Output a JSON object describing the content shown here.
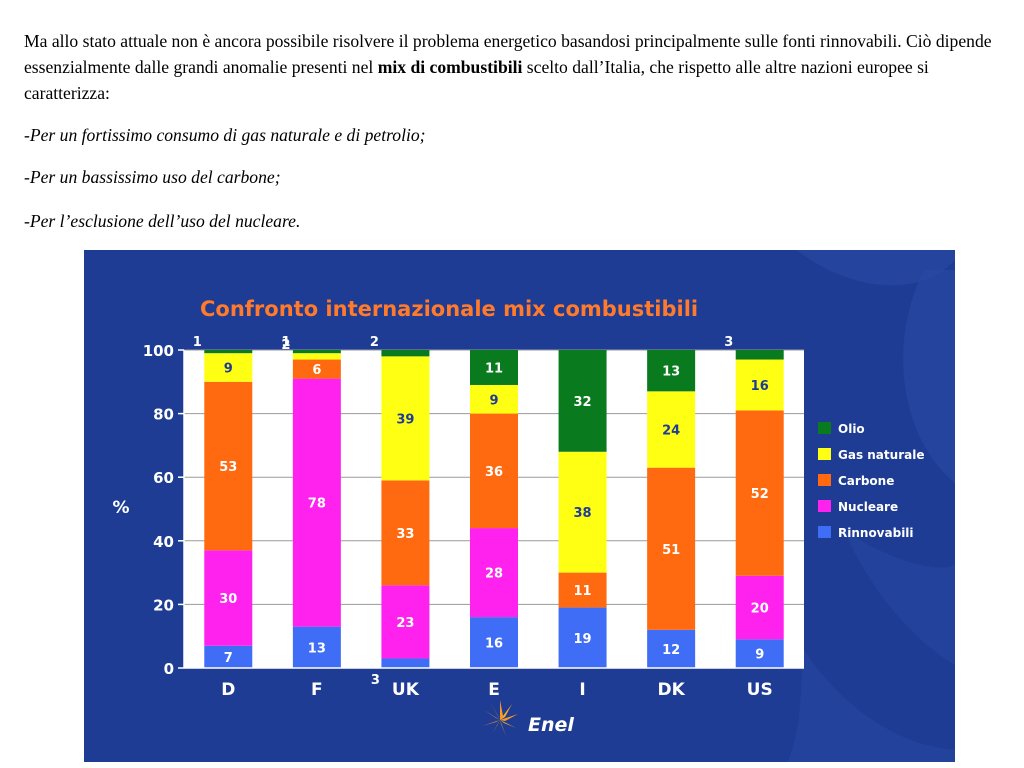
{
  "intro": {
    "text_before": "Ma allo stato attuale non è ancora possibile risolvere il problema energetico basandosi principalmente sulle fonti rinnovabili. Ciò dipende essenzialmente dalle grandi anomalie presenti nel ",
    "bold": "mix di combustibili",
    "text_after": " scelto dall’Italia, che rispetto alle altre nazioni europee si caratterizza:"
  },
  "bullets": [
    {
      "dash": "-",
      "text": "Per un fortissimo consumo di gas naturale e di petrolio;"
    },
    {
      "dash": "-",
      "text": "Per un bassissimo uso del carbone;"
    },
    {
      "dash": "-",
      "text": "Per l’esclusione dell’uso del nucleare."
    }
  ],
  "brand": "Enel",
  "chart_data": {
    "type": "bar",
    "stacked": true,
    "title": "Confronto internazionale mix combustibili",
    "ylabel": "%",
    "ylim": [
      0,
      100
    ],
    "yticks": [
      0,
      20,
      40,
      60,
      80,
      100
    ],
    "grid": true,
    "legend_position": "right",
    "categories": [
      "D",
      "F",
      "UK",
      "E",
      "I",
      "DK",
      "US"
    ],
    "series": [
      {
        "name": "Rinnovabili",
        "color": "#3f6df5",
        "label_color": "#ffffff",
        "values": [
          7,
          13,
          3,
          16,
          19,
          12,
          9
        ]
      },
      {
        "name": "Nucleare",
        "color": "#ff22ee",
        "label_color": "#ffffff",
        "values": [
          30,
          78,
          23,
          28,
          0,
          0,
          20
        ]
      },
      {
        "name": "Carbone",
        "color": "#ff6a10",
        "label_color": "#ffffff",
        "values": [
          53,
          6,
          33,
          36,
          11,
          51,
          52
        ]
      },
      {
        "name": "Gas naturale",
        "color": "#ffff14",
        "label_color": "#1e3c94",
        "values": [
          9,
          2,
          39,
          9,
          38,
          24,
          16
        ]
      },
      {
        "name": "Olio",
        "color": "#0a7a1e",
        "label_color": "#ffffff",
        "values": [
          1,
          1,
          2,
          11,
          32,
          13,
          3
        ]
      }
    ],
    "legend_order": [
      "Olio",
      "Gas naturale",
      "Carbone",
      "Nucleare",
      "Rinnovabili"
    ],
    "title_color": "#ff7a2a"
  }
}
